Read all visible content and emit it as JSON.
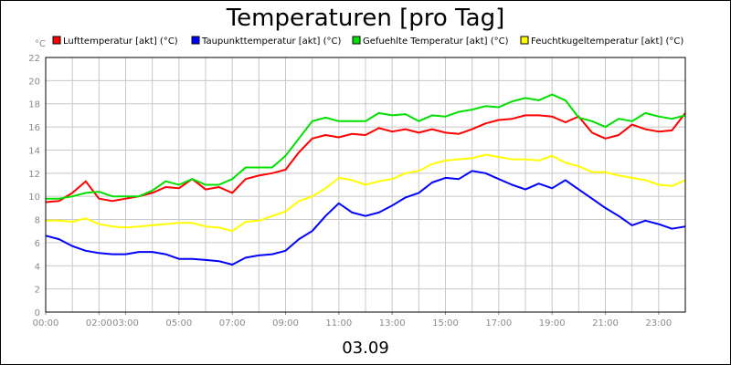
{
  "chart_data": {
    "type": "line",
    "title": "Temperaturen [pro Tag]",
    "footer": "03.09",
    "y_unit": "°C",
    "ylim": [
      0,
      22
    ],
    "y_ticks": [
      "0",
      "2",
      "4",
      "6",
      "8",
      "10",
      "12",
      "14",
      "16",
      "18",
      "20",
      "22"
    ],
    "x_ticks": [
      "00:00",
      "02:00",
      "03:00",
      "05:00",
      "07:00",
      "09:00",
      "11:00",
      "13:00",
      "15:00",
      "17:00",
      "19:00",
      "21:00",
      "23:00"
    ],
    "x_tick_hours": [
      0,
      2,
      3,
      5,
      7,
      9,
      11,
      13,
      15,
      17,
      19,
      21,
      23
    ],
    "xlim_hours": [
      0,
      24
    ],
    "grid": true,
    "legend_position": "top",
    "x_hours": [
      0,
      0.5,
      1,
      1.5,
      2,
      2.5,
      3,
      3.5,
      4,
      4.5,
      5,
      5.5,
      6,
      6.5,
      7,
      7.5,
      8,
      8.5,
      9,
      9.5,
      10,
      10.5,
      11,
      11.5,
      12,
      12.5,
      13,
      13.5,
      14,
      14.5,
      15,
      15.5,
      16,
      16.5,
      17,
      17.5,
      18,
      18.5,
      19,
      19.5,
      20,
      20.5,
      21,
      21.5,
      22,
      22.5,
      23,
      23.5,
      24
    ],
    "series": [
      {
        "name": "Lufttemperatur [akt] (°C)",
        "color": "#ff0000",
        "values": [
          9.5,
          9.6,
          10.3,
          11.3,
          9.8,
          9.6,
          9.8,
          10.0,
          10.3,
          10.8,
          10.7,
          11.5,
          10.6,
          10.8,
          10.3,
          11.5,
          11.8,
          12.0,
          12.3,
          13.8,
          15.0,
          15.3,
          15.1,
          15.4,
          15.3,
          15.9,
          15.6,
          15.8,
          15.5,
          15.8,
          15.5,
          15.4,
          15.8,
          16.3,
          16.6,
          16.7,
          17.0,
          17.0,
          16.9,
          16.4,
          16.9,
          15.5,
          15.0,
          15.3,
          16.2,
          15.8,
          15.6,
          15.7,
          17.2
        ]
      },
      {
        "name": "Taupunkttemperatur [akt] (°C)",
        "color": "#0000ff",
        "values": [
          6.6,
          6.3,
          5.7,
          5.3,
          5.1,
          5.0,
          5.0,
          5.2,
          5.2,
          5.0,
          4.6,
          4.6,
          4.5,
          4.4,
          4.1,
          4.7,
          4.9,
          5.0,
          5.3,
          6.3,
          7.0,
          8.3,
          9.4,
          8.6,
          8.3,
          8.6,
          9.2,
          9.9,
          10.3,
          11.2,
          11.6,
          11.5,
          12.2,
          12.0,
          11.5,
          11.0,
          10.6,
          11.1,
          10.7,
          11.4,
          10.6,
          9.8,
          9.0,
          8.3,
          7.5,
          7.9,
          7.6,
          7.2,
          7.4
        ]
      },
      {
        "name": "Gefuehlte Temperatur [akt] (°C)",
        "color": "#00e000",
        "values": [
          9.8,
          9.8,
          10.0,
          10.3,
          10.4,
          10.0,
          10.0,
          10.0,
          10.5,
          11.3,
          11.0,
          11.5,
          11.0,
          11.0,
          11.5,
          12.5,
          12.5,
          12.5,
          13.5,
          15.0,
          16.5,
          16.8,
          16.5,
          16.5,
          16.5,
          17.2,
          17.0,
          17.1,
          16.5,
          17.0,
          16.9,
          17.3,
          17.5,
          17.8,
          17.7,
          18.2,
          18.5,
          18.3,
          18.8,
          18.3,
          16.8,
          16.5,
          16.0,
          16.7,
          16.5,
          17.2,
          16.9,
          16.7,
          17.0
        ]
      },
      {
        "name": "Feuchtkugeltemperatur [akt] (°C)",
        "color": "#ffff00",
        "values": [
          7.9,
          7.9,
          7.8,
          8.1,
          7.6,
          7.4,
          7.3,
          7.4,
          7.5,
          7.6,
          7.7,
          7.7,
          7.4,
          7.3,
          7.0,
          7.8,
          7.9,
          8.3,
          8.7,
          9.6,
          10.0,
          10.7,
          11.6,
          11.4,
          11.0,
          11.3,
          11.5,
          12.0,
          12.2,
          12.8,
          13.1,
          13.2,
          13.3,
          13.6,
          13.4,
          13.2,
          13.2,
          13.1,
          13.5,
          12.9,
          12.6,
          12.1,
          12.1,
          11.8,
          11.6,
          11.4,
          11.0,
          10.9,
          11.4
        ]
      }
    ]
  }
}
